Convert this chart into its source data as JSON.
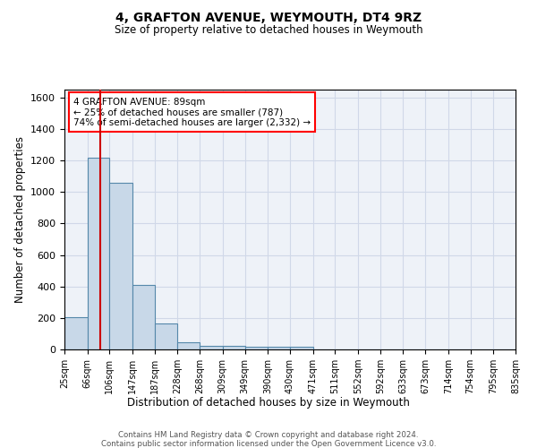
{
  "title1": "4, GRAFTON AVENUE, WEYMOUTH, DT4 9RZ",
  "title2": "Size of property relative to detached houses in Weymouth",
  "xlabel": "Distribution of detached houses by size in Weymouth",
  "ylabel": "Number of detached properties",
  "bin_edges": [
    25,
    66,
    106,
    147,
    187,
    228,
    268,
    309,
    349,
    390,
    430,
    471,
    511,
    552,
    592,
    633,
    673,
    714,
    754,
    795,
    835
  ],
  "bar_heights": [
    205,
    1220,
    1060,
    410,
    165,
    48,
    25,
    20,
    15,
    15,
    15,
    0,
    0,
    0,
    0,
    0,
    0,
    0,
    0,
    0
  ],
  "bar_color": "#c8d8e8",
  "bar_edge_color": "#5588aa",
  "property_size": 89,
  "annotation_line1": "4 GRAFTON AVENUE: 89sqm",
  "annotation_line2": "← 25% of detached houses are smaller (787)",
  "annotation_line3": "74% of semi-detached houses are larger (2,332) →",
  "vline_color": "#cc0000",
  "ylim": [
    0,
    1650
  ],
  "yticks": [
    0,
    200,
    400,
    600,
    800,
    1000,
    1200,
    1400,
    1600
  ],
  "tick_labels": [
    "25sqm",
    "66sqm",
    "106sqm",
    "147sqm",
    "187sqm",
    "228sqm",
    "268sqm",
    "309sqm",
    "349sqm",
    "390sqm",
    "430sqm",
    "471sqm",
    "511sqm",
    "552sqm",
    "592sqm",
    "633sqm",
    "673sqm",
    "714sqm",
    "754sqm",
    "795sqm",
    "835sqm"
  ],
  "grid_color": "#d0d8e8",
  "bg_color": "#eef2f8",
  "footer1": "Contains HM Land Registry data © Crown copyright and database right 2024.",
  "footer2": "Contains public sector information licensed under the Open Government Licence v3.0."
}
